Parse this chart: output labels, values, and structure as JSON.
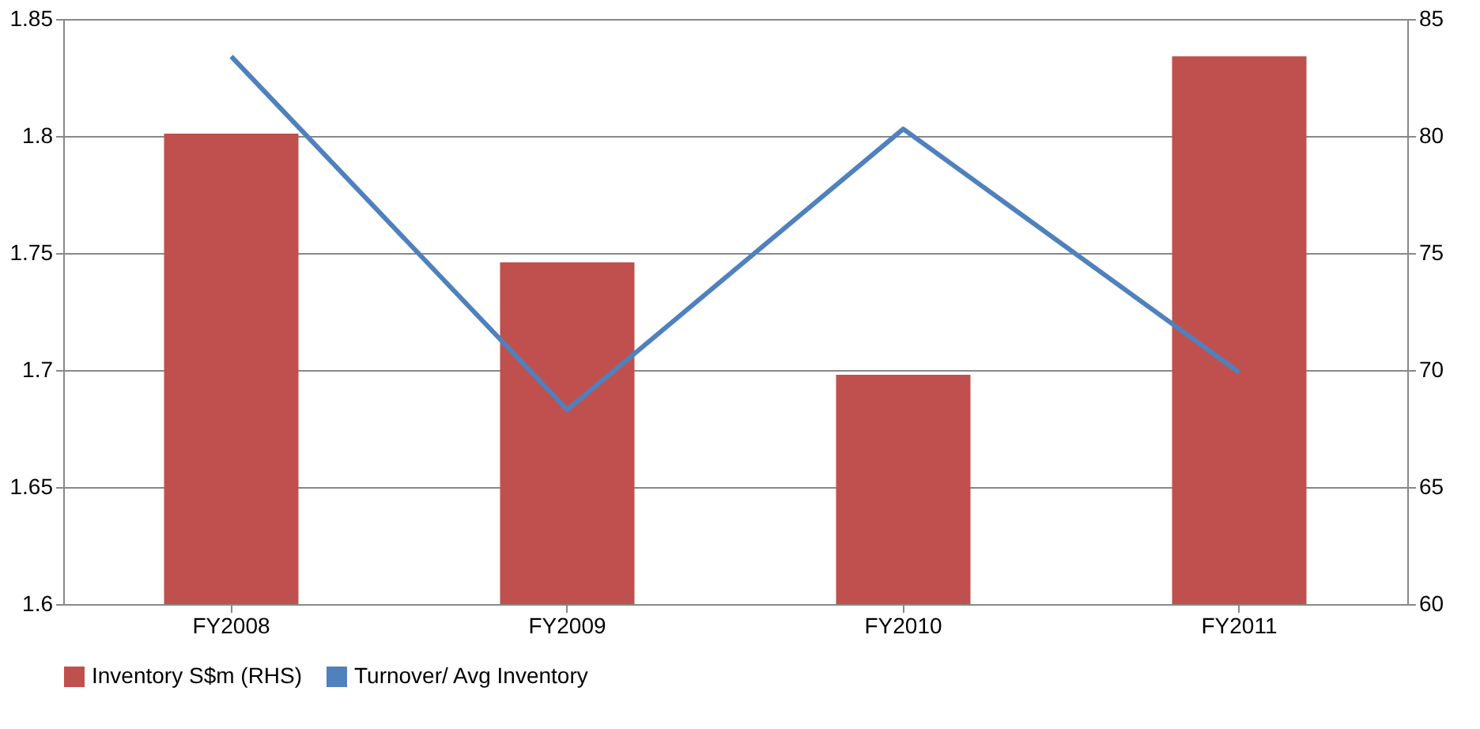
{
  "chart_data": {
    "type": "bar",
    "categories": [
      "FY2008",
      "FY2009",
      "FY2010",
      "FY2011"
    ],
    "series": [
      {
        "name": "Inventory S$m (RHS)",
        "axis": "y2",
        "color": "#c0504d",
        "values": [
          80.1,
          74.6,
          69.8,
          83.4
        ]
      },
      {
        "name": "Turnover/ Avg Inventory",
        "type": "line",
        "color": "#4f81bd",
        "values": [
          1.834,
          1.683,
          1.803,
          1.699
        ]
      }
    ],
    "ylim": [
      1.6,
      1.85
    ],
    "yticks": [
      1.6,
      1.65,
      1.7,
      1.75,
      1.8,
      1.85
    ],
    "y2lim": [
      60,
      85
    ],
    "y2ticks": [
      60,
      65,
      70,
      75,
      80,
      85
    ],
    "grid": "y",
    "legend": "bottom",
    "marker": "none"
  }
}
